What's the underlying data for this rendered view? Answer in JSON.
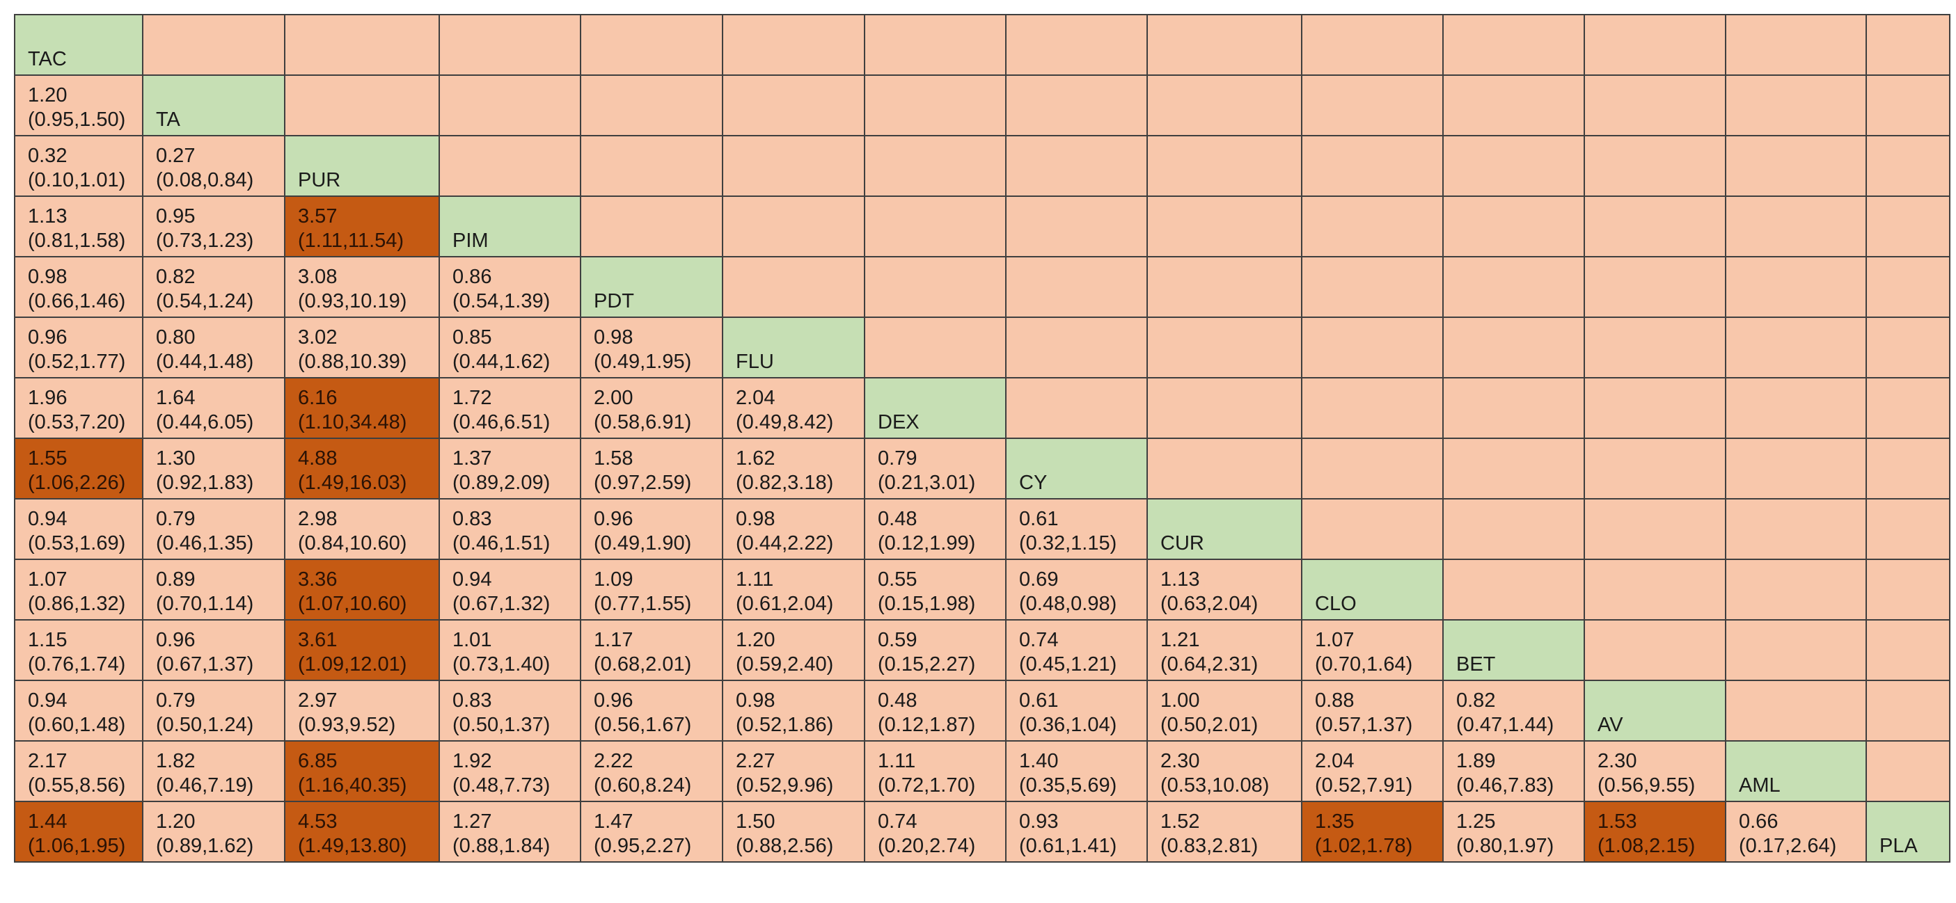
{
  "table": {
    "treatments": [
      "TAC",
      "TA",
      "PUR",
      "PIM",
      "PDT",
      "FLU",
      "DEX",
      "CY",
      "CUR",
      "CLO",
      "BET",
      "AV",
      "AML",
      "PLA"
    ],
    "colors": {
      "background": "#f8c7ab",
      "diagonal": "#c6dfb4",
      "significant": "#c55a13"
    },
    "rows": [
      [],
      [
        {
          "est": "1.20",
          "ci": "(0.95,1.50)"
        }
      ],
      [
        {
          "est": "0.32",
          "ci": "(0.10,1.01)"
        },
        {
          "est": "0.27",
          "ci": "(0.08,0.84)"
        }
      ],
      [
        {
          "est": "1.13",
          "ci": "(0.81,1.58)"
        },
        {
          "est": "0.95",
          "ci": "(0.73,1.23)"
        },
        {
          "est": "3.57",
          "ci": "(1.11,11.54)",
          "sig": true
        }
      ],
      [
        {
          "est": "0.98",
          "ci": "(0.66,1.46)"
        },
        {
          "est": "0.82",
          "ci": "(0.54,1.24)"
        },
        {
          "est": "3.08",
          "ci": "(0.93,10.19)"
        },
        {
          "est": "0.86",
          "ci": "(0.54,1.39)"
        }
      ],
      [
        {
          "est": "0.96",
          "ci": "(0.52,1.77)"
        },
        {
          "est": "0.80",
          "ci": "(0.44,1.48)"
        },
        {
          "est": "3.02",
          "ci": "(0.88,10.39)"
        },
        {
          "est": "0.85",
          "ci": "(0.44,1.62)"
        },
        {
          "est": "0.98",
          "ci": "(0.49,1.95)"
        }
      ],
      [
        {
          "est": "1.96",
          "ci": "(0.53,7.20)"
        },
        {
          "est": "1.64",
          "ci": "(0.44,6.05)"
        },
        {
          "est": "6.16",
          "ci": "(1.10,34.48)",
          "sig": true
        },
        {
          "est": "1.72",
          "ci": "(0.46,6.51)"
        },
        {
          "est": "2.00",
          "ci": "(0.58,6.91)"
        },
        {
          "est": "2.04",
          "ci": "(0.49,8.42)"
        }
      ],
      [
        {
          "est": "1.55",
          "ci": "(1.06,2.26)",
          "sig": true
        },
        {
          "est": "1.30",
          "ci": "(0.92,1.83)"
        },
        {
          "est": "4.88",
          "ci": "(1.49,16.03)",
          "sig": true
        },
        {
          "est": "1.37",
          "ci": "(0.89,2.09)"
        },
        {
          "est": "1.58",
          "ci": "(0.97,2.59)"
        },
        {
          "est": "1.62",
          "ci": "(0.82,3.18)"
        },
        {
          "est": "0.79",
          "ci": "(0.21,3.01)"
        }
      ],
      [
        {
          "est": "0.94",
          "ci": "(0.53,1.69)"
        },
        {
          "est": "0.79",
          "ci": "(0.46,1.35)"
        },
        {
          "est": "2.98",
          "ci": "(0.84,10.60)"
        },
        {
          "est": "0.83",
          "ci": "(0.46,1.51)"
        },
        {
          "est": "0.96",
          "ci": "(0.49,1.90)"
        },
        {
          "est": "0.98",
          "ci": "(0.44,2.22)"
        },
        {
          "est": "0.48",
          "ci": "(0.12,1.99)"
        },
        {
          "est": "0.61",
          "ci": "(0.32,1.15)"
        }
      ],
      [
        {
          "est": "1.07",
          "ci": "(0.86,1.32)"
        },
        {
          "est": "0.89",
          "ci": "(0.70,1.14)"
        },
        {
          "est": "3.36",
          "ci": "(1.07,10.60)",
          "sig": true
        },
        {
          "est": "0.94",
          "ci": "(0.67,1.32)"
        },
        {
          "est": "1.09",
          "ci": "(0.77,1.55)"
        },
        {
          "est": "1.11",
          "ci": "(0.61,2.04)"
        },
        {
          "est": "0.55",
          "ci": "(0.15,1.98)"
        },
        {
          "est": "0.69",
          "ci": "(0.48,0.98)"
        },
        {
          "est": "1.13",
          "ci": "(0.63,2.04)"
        }
      ],
      [
        {
          "est": "1.15",
          "ci": "(0.76,1.74)"
        },
        {
          "est": "0.96",
          "ci": "(0.67,1.37)"
        },
        {
          "est": "3.61",
          "ci": "(1.09,12.01)",
          "sig": true
        },
        {
          "est": "1.01",
          "ci": "(0.73,1.40)"
        },
        {
          "est": "1.17",
          "ci": "(0.68,2.01)"
        },
        {
          "est": "1.20",
          "ci": "(0.59,2.40)"
        },
        {
          "est": "0.59",
          "ci": "(0.15,2.27)"
        },
        {
          "est": "0.74",
          "ci": "(0.45,1.21)"
        },
        {
          "est": "1.21",
          "ci": "(0.64,2.31)"
        },
        {
          "est": "1.07",
          "ci": "(0.70,1.64)"
        }
      ],
      [
        {
          "est": "0.94",
          "ci": "(0.60,1.48)"
        },
        {
          "est": "0.79",
          "ci": "(0.50,1.24)"
        },
        {
          "est": "2.97",
          "ci": "(0.93,9.52)"
        },
        {
          "est": "0.83",
          "ci": "(0.50,1.37)"
        },
        {
          "est": "0.96",
          "ci": "(0.56,1.67)"
        },
        {
          "est": "0.98",
          "ci": "(0.52,1.86)"
        },
        {
          "est": "0.48",
          "ci": "(0.12,1.87)"
        },
        {
          "est": "0.61",
          "ci": "(0.36,1.04)"
        },
        {
          "est": "1.00",
          "ci": "(0.50,2.01)"
        },
        {
          "est": "0.88",
          "ci": "(0.57,1.37)"
        },
        {
          "est": "0.82",
          "ci": "(0.47,1.44)"
        }
      ],
      [
        {
          "est": "2.17",
          "ci": "(0.55,8.56)"
        },
        {
          "est": "1.82",
          "ci": "(0.46,7.19)"
        },
        {
          "est": "6.85",
          "ci": "(1.16,40.35)",
          "sig": true
        },
        {
          "est": "1.92",
          "ci": "(0.48,7.73)"
        },
        {
          "est": "2.22",
          "ci": "(0.60,8.24)"
        },
        {
          "est": "2.27",
          "ci": "(0.52,9.96)"
        },
        {
          "est": "1.11",
          "ci": "(0.72,1.70)"
        },
        {
          "est": "1.40",
          "ci": "(0.35,5.69)"
        },
        {
          "est": "2.30",
          "ci": "(0.53,10.08)"
        },
        {
          "est": "2.04",
          "ci": "(0.52,7.91)"
        },
        {
          "est": "1.89",
          "ci": "(0.46,7.83)"
        },
        {
          "est": "2.30",
          "ci": "(0.56,9.55)"
        }
      ],
      [
        {
          "est": "1.44",
          "ci": "(1.06,1.95)",
          "sig": true
        },
        {
          "est": "1.20",
          "ci": "(0.89,1.62)"
        },
        {
          "est": "4.53",
          "ci": "(1.49,13.80)",
          "sig": true
        },
        {
          "est": "1.27",
          "ci": "(0.88,1.84)"
        },
        {
          "est": "1.47",
          "ci": "(0.95,2.27)"
        },
        {
          "est": "1.50",
          "ci": "(0.88,2.56)"
        },
        {
          "est": "0.74",
          "ci": "(0.20,2.74)"
        },
        {
          "est": "0.93",
          "ci": "(0.61,1.41)"
        },
        {
          "est": "1.52",
          "ci": "(0.83,2.81)"
        },
        {
          "est": "1.35",
          "ci": "(1.02,1.78)",
          "sig": true
        },
        {
          "est": "1.25",
          "ci": "(0.80,1.97)"
        },
        {
          "est": "1.53",
          "ci": "(1.08,2.15)",
          "sig": true
        },
        {
          "est": "0.66",
          "ci": "(0.17,2.64)"
        }
      ]
    ]
  }
}
